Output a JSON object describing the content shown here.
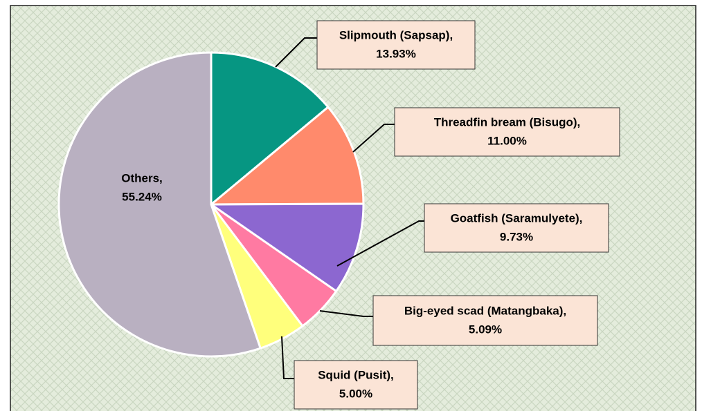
{
  "chart_data": {
    "type": "pie",
    "categories": [
      "Slipmouth (Sapsap),",
      "Threadfin bream (Bisugo),",
      "Goatfish (Saramulyete),",
      "Big-eyed scad (Matangbaka),",
      "Squid (Pusit),",
      "Others,"
    ],
    "values": [
      13.93,
      11.0,
      9.73,
      5.09,
      5.0,
      55.24
    ],
    "value_labels": [
      "13.93%",
      "11.00%",
      "9.73%",
      "5.09%",
      "5.00%",
      "55.24%"
    ],
    "colors": [
      "#069682",
      "#ff8a6c",
      "#8c67d0",
      "#ff7aa2",
      "#ffff7c",
      "#b9b0c1"
    ]
  }
}
